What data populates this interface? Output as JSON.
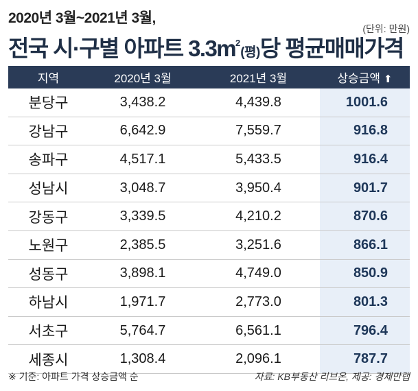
{
  "header": {
    "subtitle": "2020년 3월~2021년 3월,",
    "title_main": "전국 시·구별 아파트 3.3m",
    "title_sup": "2",
    "title_pyeong": "(평)",
    "title_end": "당 평균매매가격",
    "unit": "(단위: 만원)"
  },
  "chart_data": {
    "type": "table",
    "columns": [
      "지역",
      "2020년 3월",
      "2021년 3월",
      "상승금액"
    ],
    "sort_indicator": "arrow-up-icon",
    "highlight_color": "#e8eff8",
    "header_color": "#2a3b57",
    "rows": [
      {
        "region": "분당구",
        "y2020": "3,438.2",
        "y2021": "4,439.8",
        "rise": "1001.6"
      },
      {
        "region": "강남구",
        "y2020": "6,642.9",
        "y2021": "7,559.7",
        "rise": "916.8"
      },
      {
        "region": "송파구",
        "y2020": "4,517.1",
        "y2021": "5,433.5",
        "rise": "916.4"
      },
      {
        "region": "성남시",
        "y2020": "3,048.7",
        "y2021": "3,950.4",
        "rise": "901.7"
      },
      {
        "region": "강동구",
        "y2020": "3,339.5",
        "y2021": "4,210.2",
        "rise": "870.6"
      },
      {
        "region": "노원구",
        "y2020": "2,385.5",
        "y2021": "3,251.6",
        "rise": "866.1"
      },
      {
        "region": "성동구",
        "y2020": "3,898.1",
        "y2021": "4,749.0",
        "rise": "850.9"
      },
      {
        "region": "하남시",
        "y2020": "1,971.7",
        "y2021": "2,773.0",
        "rise": "801.3"
      },
      {
        "region": "서초구",
        "y2020": "5,764.7",
        "y2021": "6,561.1",
        "rise": "796.4"
      },
      {
        "region": "세종시",
        "y2020": "1,308.4",
        "y2021": "2,096.1",
        "rise": "787.7"
      }
    ]
  },
  "footer": {
    "note": "※ 기준: 아파트 가격 상승금액 순",
    "source": "자료: KB부동산 리브온, 제공: 경제만랩"
  }
}
